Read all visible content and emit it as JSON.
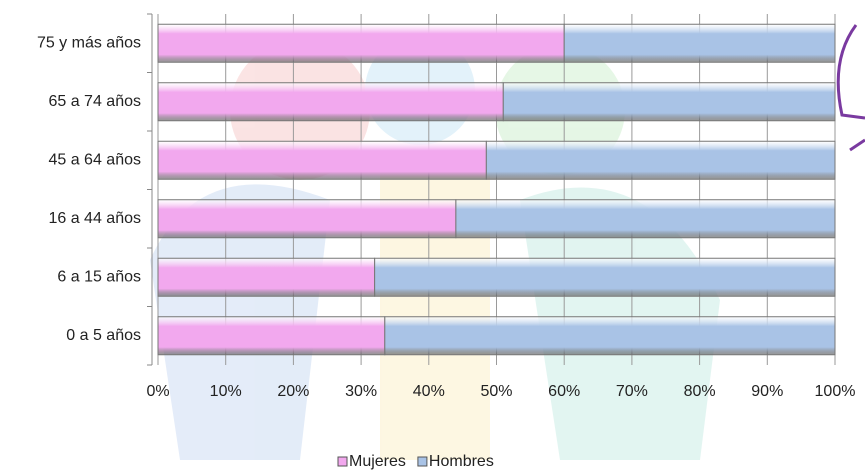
{
  "chart_data": {
    "type": "bar",
    "orientation": "horizontal",
    "stacked": true,
    "categories": [
      "75 y más años",
      "65 a 74 años",
      "45 a 64 años",
      "16 a 44 años",
      "6 a 15 años",
      "0 a 5 años"
    ],
    "series": [
      {
        "name": "Mujeres",
        "color": "#f2a8ee",
        "values": [
          60,
          51,
          48.5,
          44,
          32,
          33.5
        ]
      },
      {
        "name": "Hombres",
        "color": "#a9c3e6",
        "values": [
          40,
          49,
          51.5,
          56,
          68,
          66.5
        ]
      }
    ],
    "xlim": [
      0,
      100
    ],
    "xticks": [
      {
        "value": 0,
        "label": "0%"
      },
      {
        "value": 10,
        "label": "10%"
      },
      {
        "value": 20,
        "label": "20%"
      },
      {
        "value": 30,
        "label": "30%"
      },
      {
        "value": 40,
        "label": "40%"
      },
      {
        "value": 50,
        "label": "50%"
      },
      {
        "value": 60,
        "label": "60%"
      },
      {
        "value": 70,
        "label": "70%"
      },
      {
        "value": 80,
        "label": "80%"
      },
      {
        "value": 90,
        "label": "90%"
      },
      {
        "value": 100,
        "label": "100%"
      }
    ],
    "grid": true,
    "legend": "bottom"
  }
}
